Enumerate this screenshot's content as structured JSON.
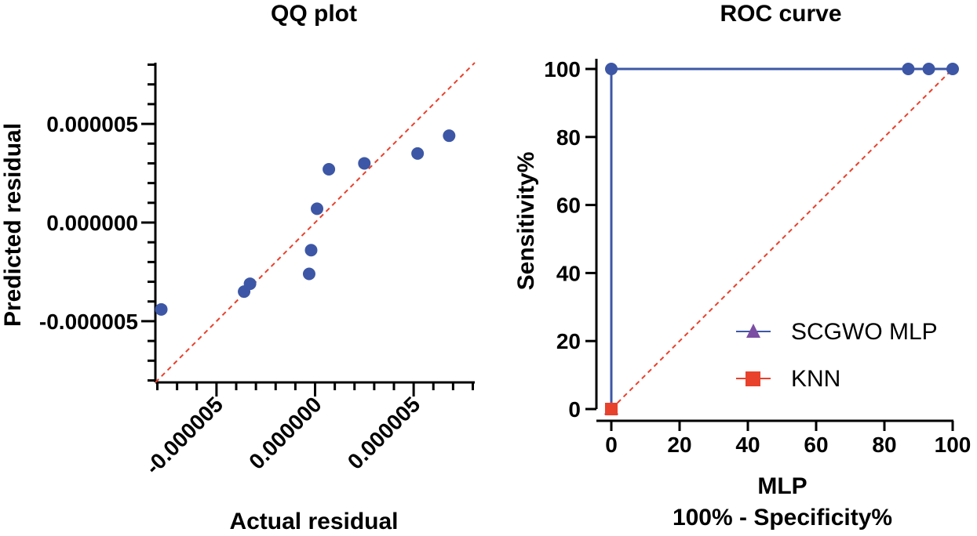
{
  "chart_data": [
    {
      "type": "scatter",
      "title": "QQ plot",
      "xlabel": "Actual residual",
      "ylabel": "Predicted residual",
      "xlim": [
        -8.1e-06,
        8.1e-06
      ],
      "ylim": [
        -8.1e-06,
        8.1e-06
      ],
      "xticks": [
        -5e-06,
        0.0,
        5e-06
      ],
      "xtick_labels": [
        "-0.000005",
        "0.000000",
        "0.000005"
      ],
      "yticks": [
        -5e-06,
        0.0,
        5e-06
      ],
      "ytick_labels": [
        "-0.000005",
        "0.000000",
        "0.000005"
      ],
      "reference_line": "y = x",
      "marker_color": "#3d57a6",
      "reference_color": "#e8412c",
      "points": [
        {
          "x": -7.8e-06,
          "y": -4.4e-06
        },
        {
          "x": -3.6e-06,
          "y": -3.5e-06
        },
        {
          "x": -3.3e-06,
          "y": -3.1e-06
        },
        {
          "x": -3e-07,
          "y": -2.6e-06
        },
        {
          "x": -2e-07,
          "y": -1.4e-06
        },
        {
          "x": 1e-07,
          "y": 7e-07
        },
        {
          "x": 7e-07,
          "y": 2.7e-06
        },
        {
          "x": 2.5e-06,
          "y": 3e-06
        },
        {
          "x": 5.2e-06,
          "y": 3.5e-06
        },
        {
          "x": 6.8e-06,
          "y": 4.4e-06
        }
      ]
    },
    {
      "type": "line",
      "title": "ROC curve",
      "xlabel_line1": "MLP",
      "xlabel_line2": "100% - Specificity%",
      "ylabel": "Sensitivity%",
      "xlim": [
        0,
        100
      ],
      "ylim": [
        0,
        100
      ],
      "xticks": [
        0,
        20,
        40,
        60,
        80,
        100
      ],
      "yticks": [
        0,
        20,
        40,
        60,
        80,
        100
      ],
      "xtick_labels": [
        "0",
        "20",
        "40",
        "60",
        "80",
        "100"
      ],
      "ytick_labels": [
        "0",
        "20",
        "40",
        "60",
        "80",
        "100"
      ],
      "reference_line": "y = x",
      "reference_color": "#e8412c",
      "legend_position": "bottom-right",
      "series": [
        {
          "name": "SCGWO MLP",
          "marker": "triangle",
          "color": "#3d57a6",
          "marker_color": "#7b4ea3",
          "x": [
            0,
            0,
            0,
            87,
            93,
            100
          ],
          "y": [
            0,
            0,
            100,
            100,
            100,
            100
          ],
          "point_color": "#3d57a6"
        },
        {
          "name": "KNN",
          "marker": "square",
          "color": "#e8412c",
          "marker_color": "#e8412c",
          "x": [
            0
          ],
          "y": [
            0
          ]
        }
      ]
    }
  ]
}
